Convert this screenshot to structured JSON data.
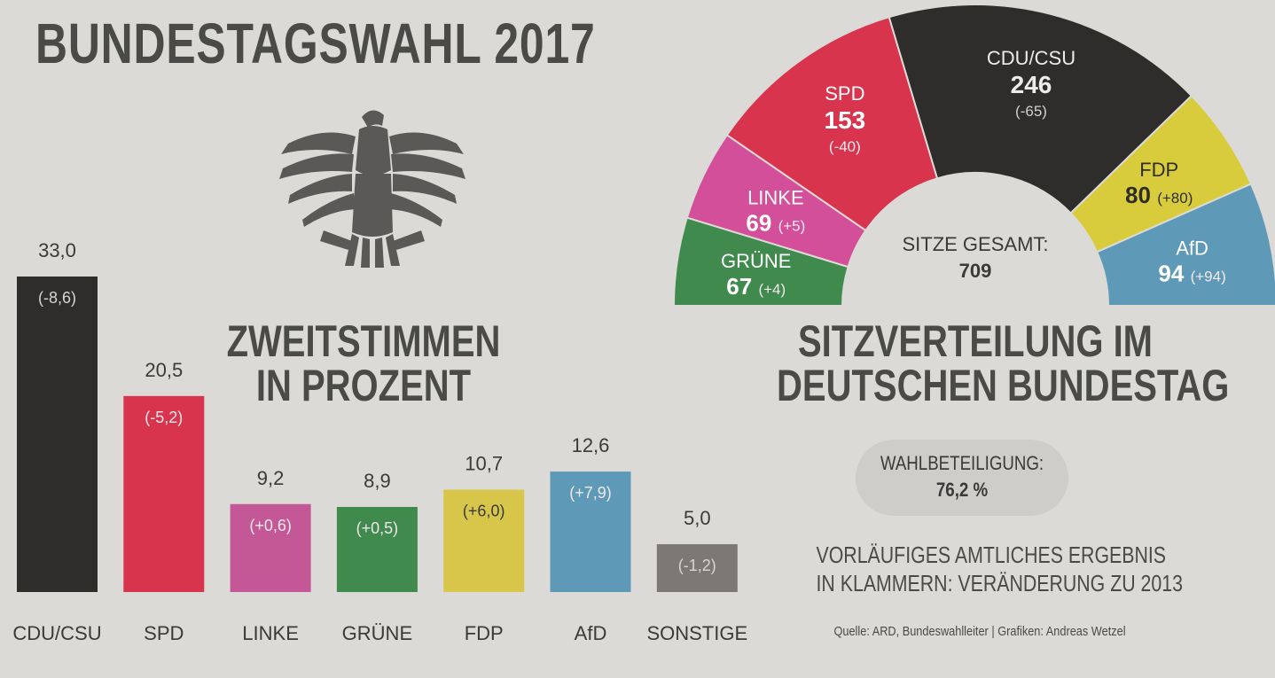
{
  "title": "BUNDESTAGSWAHL 2017",
  "chart_data": [
    {
      "type": "bar",
      "title": "ZWEITSTIMMEN IN PROZENT",
      "title_lines": [
        "ZWEITSTIMMEN",
        "IN PROZENT"
      ],
      "categories": [
        "CDU/CSU",
        "SPD",
        "LINKE",
        "GRÜNE",
        "FDP",
        "AfD",
        "SONSTIGE"
      ],
      "values": [
        33.0,
        20.5,
        9.2,
        8.9,
        10.7,
        12.6,
        5.0
      ],
      "value_labels": [
        "33,0",
        "20,5",
        "9,2",
        "8,9",
        "10,7",
        "12,6",
        "5,0"
      ],
      "change_labels": [
        "(-8,6)",
        "(-5,2)",
        "(+0,6)",
        "(+0,5)",
        "(+6,0)",
        "(+7,9)",
        "(-1,2)"
      ],
      "colors": [
        "#2f2d2b",
        "#d8344e",
        "#c45896",
        "#3f8a4c",
        "#d7c64a",
        "#5e9ab8",
        "#7b7875"
      ],
      "ylim": [
        0,
        33.0
      ]
    },
    {
      "type": "pie",
      "subtype": "semicircle",
      "title": "SITZVERTEILUNG IM DEUTSCHEN BUNDESTAG",
      "title_lines": [
        "SITZVERTEILUNG IM",
        "DEUTSCHEN BUNDESTAG"
      ],
      "total_label": "SITZE GESAMT:",
      "total": 709,
      "segments": [
        {
          "name": "GRÜNE",
          "seats": 67,
          "seats_label": "67",
          "change": "(+4)",
          "color": "#3f8a4c"
        },
        {
          "name": "LINKE",
          "seats": 69,
          "seats_label": "69",
          "change": "(+5)",
          "color": "#d44f9a"
        },
        {
          "name": "SPD",
          "seats": 153,
          "seats_label": "153",
          "change": "(-40)",
          "color": "#d8344e"
        },
        {
          "name": "CDU/CSU",
          "seats": 246,
          "seats_label": "246",
          "change": "(-65)",
          "color": "#2f2d2b"
        },
        {
          "name": "FDP",
          "seats": 80,
          "seats_label": "80",
          "change": "(+80)",
          "color": "#d8cc3c"
        },
        {
          "name": "AfD",
          "seats": 94,
          "seats_label": "94",
          "change": "(+94)",
          "color": "#5e9ab8"
        }
      ]
    }
  ],
  "turnout": {
    "label": "WAHLBETEILIGUNG:",
    "value": "76,2 %"
  },
  "note_lines": [
    "VORLÄUFIGES AMTLICHES ERGEBNIS",
    "IN KLAMMERN: VERÄNDERUNG ZU 2013"
  ],
  "source": "Quelle: ARD, Bundeswahlleiter | Grafiken: Andreas Wetzel",
  "icon": "federal-eagle-icon"
}
